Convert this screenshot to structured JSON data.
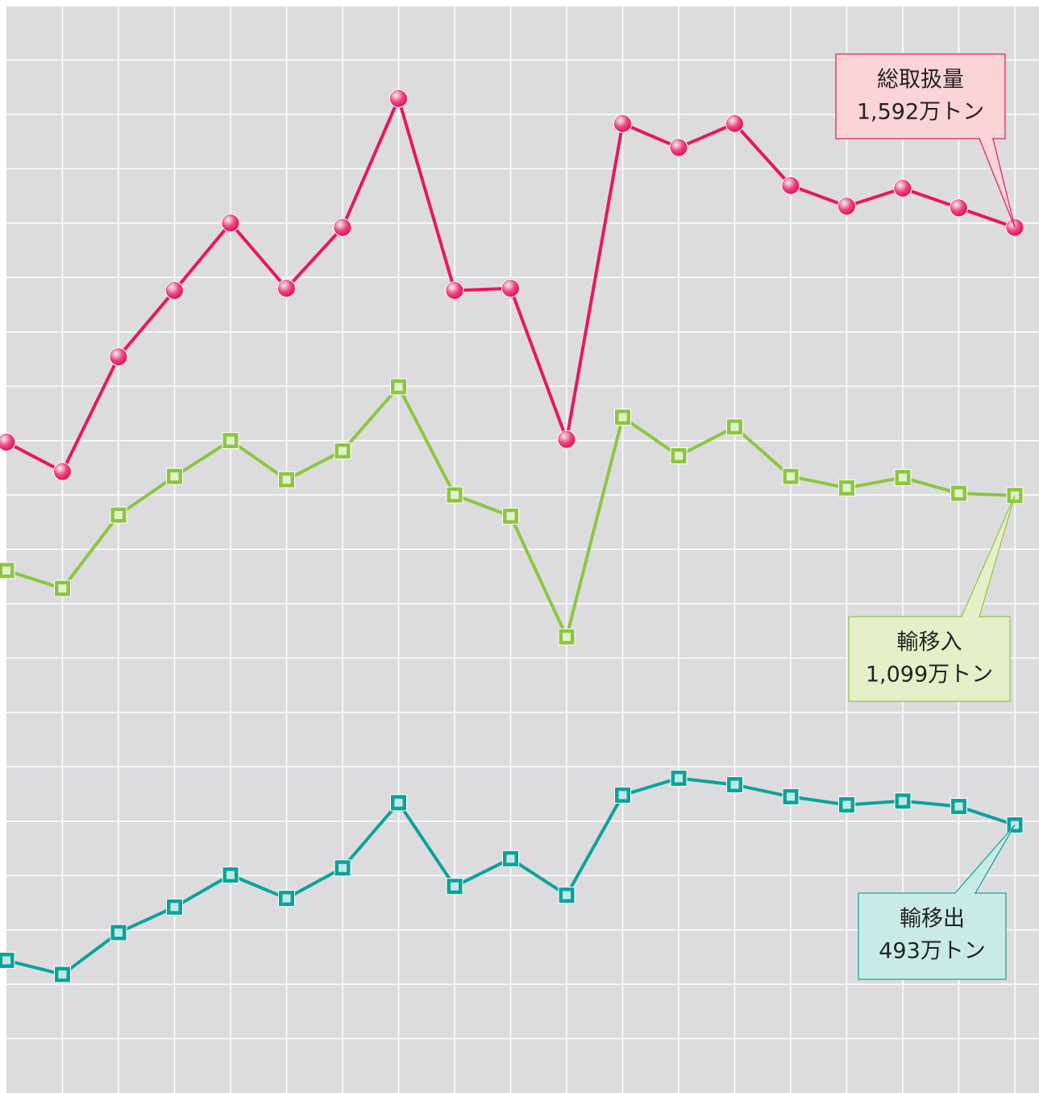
{
  "chart_data": {
    "type": "line",
    "categories": [
      null,
      null,
      null,
      null,
      null,
      null,
      null,
      null,
      null,
      null,
      null,
      null,
      null,
      null,
      null,
      null,
      null,
      null,
      null
    ],
    "series": [
      {
        "name": "総取扱量",
        "color": "#e8185a",
        "marker": "circle",
        "values": [
          1197,
          1143,
          1354,
          1476,
          1600,
          1480,
          1592,
          1829,
          1476,
          1480,
          1202,
          1783,
          1739,
          1783,
          1669,
          1631,
          1664,
          1628,
          1592
        ],
        "value_labels": [
          null,
          null,
          null,
          null,
          null,
          null,
          null,
          null,
          null,
          null,
          null,
          null,
          null,
          null,
          null,
          null,
          null,
          null,
          "1,592万トン"
        ]
      },
      {
        "name": "輸移入",
        "color": "#8cc63f",
        "marker": "square",
        "values": [
          961,
          928,
          1063,
          1134,
          1200,
          1128,
          1181,
          1299,
          1100,
          1061,
          839,
          1243,
          1172,
          1225,
          1134,
          1113,
          1132,
          1103,
          1099
        ],
        "value_labels": [
          null,
          null,
          null,
          null,
          null,
          null,
          null,
          null,
          null,
          null,
          null,
          null,
          null,
          null,
          null,
          null,
          null,
          null,
          "1,099万トン"
        ]
      },
      {
        "name": "輸移出",
        "color": "#0aa39a",
        "marker": "square",
        "values": [
          244,
          218,
          295,
          342,
          401,
          358,
          414,
          534,
          380,
          431,
          364,
          548,
          579,
          567,
          545,
          530,
          537,
          527,
          493
        ],
        "value_labels": [
          null,
          null,
          null,
          null,
          null,
          null,
          null,
          null,
          null,
          null,
          null,
          null,
          null,
          null,
          null,
          null,
          null,
          null,
          "493万トン"
        ]
      }
    ],
    "ylim": [
      0,
      2000
    ],
    "yticks": [
      100,
      200,
      300,
      400,
      500,
      600,
      700,
      800,
      900,
      1000,
      1100,
      1200,
      1300,
      1400,
      1500,
      1600,
      1700,
      1800,
      1900
    ],
    "grid": true
  }
}
